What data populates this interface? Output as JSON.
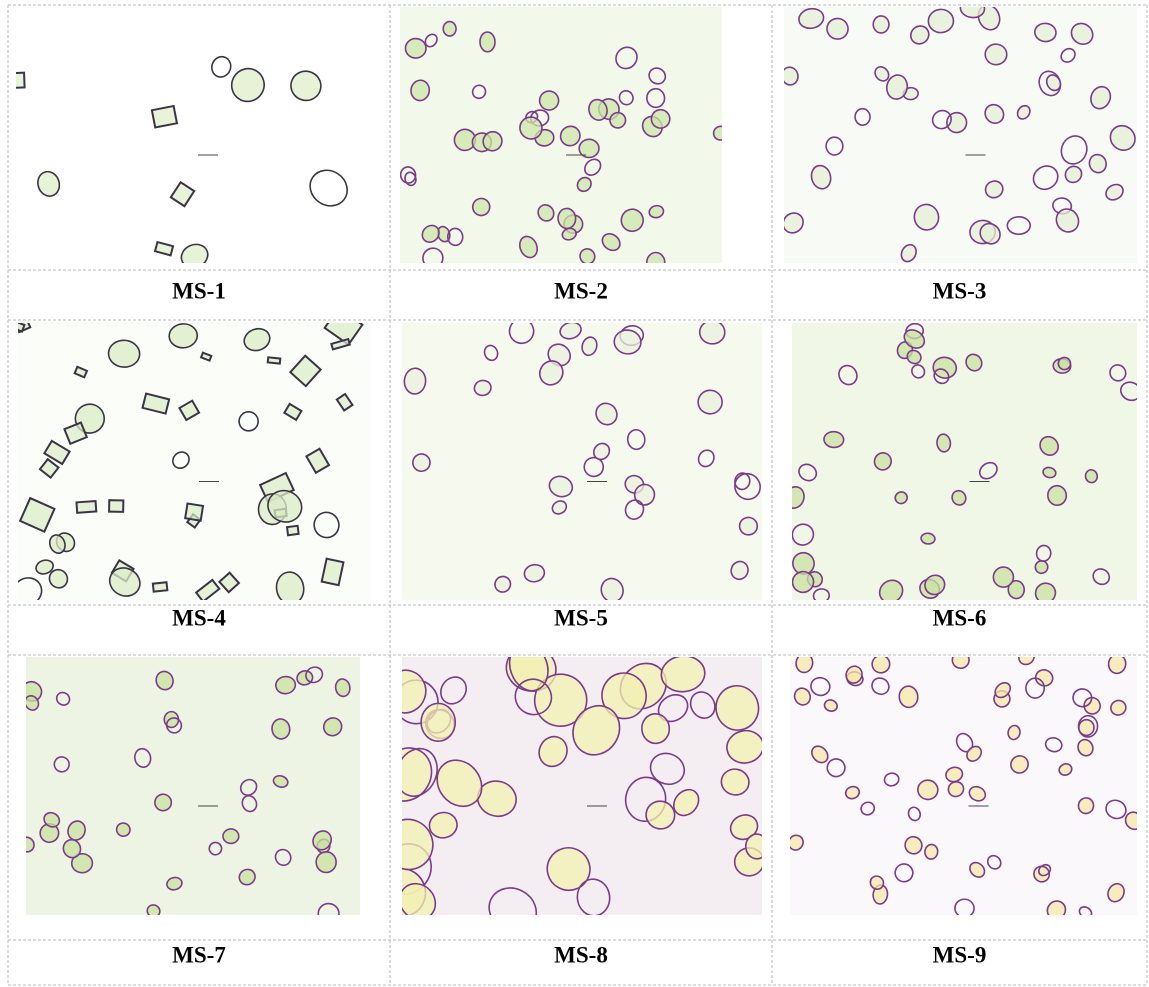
{
  "figure": {
    "panels": [
      "MS-1",
      "MS-2",
      "MS-3",
      "MS-4",
      "MS-5",
      "MS-6",
      "MS-7",
      "MS-8",
      "MS-9"
    ]
  }
}
